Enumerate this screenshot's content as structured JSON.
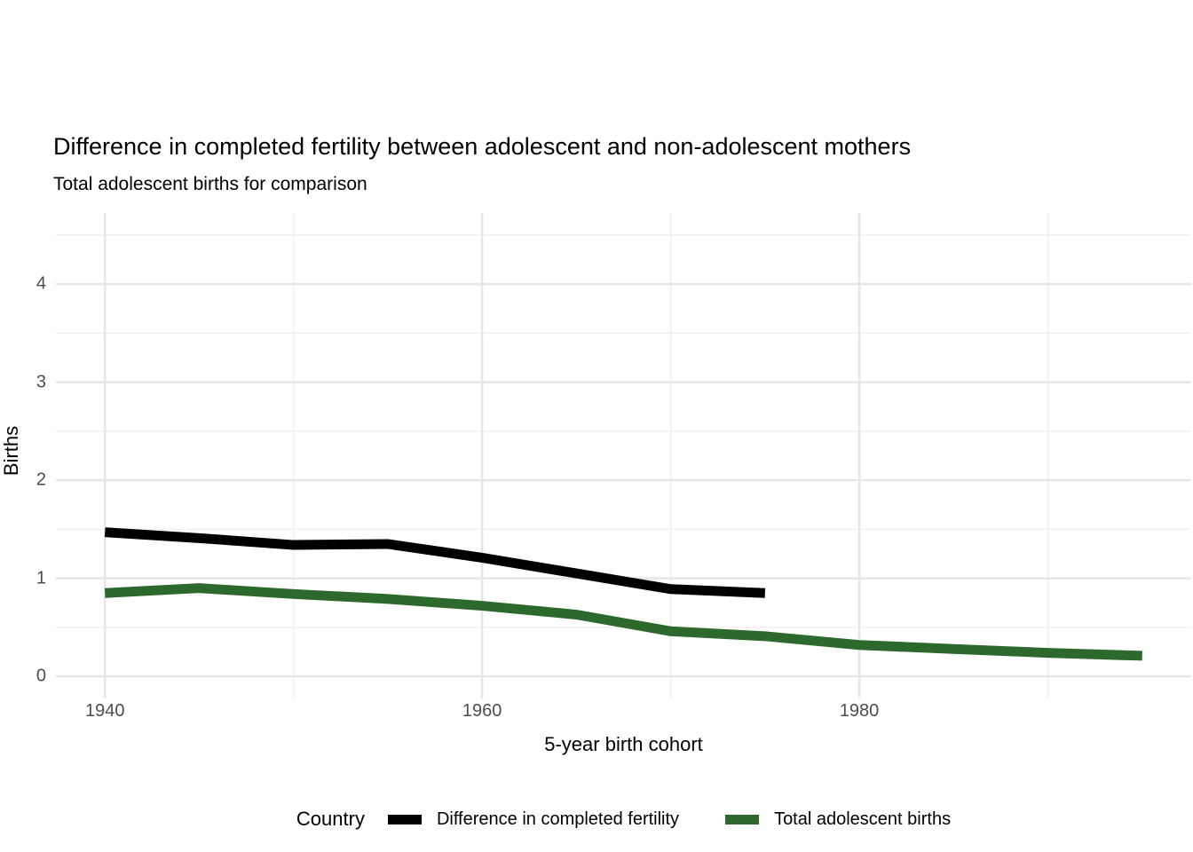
{
  "title": "Difference in completed fertility between adolescent and non-adolescent mothers",
  "subtitle": "Total adolescent births for comparison",
  "chart_data": {
    "type": "line",
    "title": "Difference in completed fertility between adolescent and non-adolescent mothers",
    "subtitle": "Total adolescent births for comparison",
    "xlabel": "5-year birth cohort",
    "ylabel": "Births",
    "legend_title": "Country",
    "legend_position": "bottom",
    "grid": true,
    "background": "#ffffff",
    "grid_major_color": "#e6e6e6",
    "grid_minor_color": "#f0f0f0",
    "tick_label_color": "#4d4d4d",
    "xlim": [
      1937.4,
      1997.6
    ],
    "ylim": [
      -0.225,
      4.725
    ],
    "x_ticks": [
      1940,
      1960,
      1980
    ],
    "x_minor_ticks": [
      1950,
      1970,
      1990
    ],
    "y_ticks": [
      0,
      1,
      2,
      3,
      4
    ],
    "y_minor_ticks": [
      0.5,
      1.5,
      2.5,
      3.5,
      4.5
    ],
    "series": [
      {
        "name": "Difference in completed fertility",
        "color": "#000000",
        "x": [
          1940,
          1945,
          1950,
          1955,
          1960,
          1965,
          1970,
          1975
        ],
        "y": [
          1.47,
          1.41,
          1.34,
          1.35,
          1.21,
          1.05,
          0.89,
          0.85
        ]
      },
      {
        "name": "Total adolescent births",
        "color": "#2d692d",
        "x": [
          1940,
          1945,
          1950,
          1955,
          1960,
          1965,
          1970,
          1975,
          1980,
          1985,
          1990,
          1995
        ],
        "y": [
          0.85,
          0.9,
          0.84,
          0.79,
          0.72,
          0.63,
          0.46,
          0.41,
          0.32,
          0.28,
          0.24,
          0.21
        ]
      }
    ]
  }
}
